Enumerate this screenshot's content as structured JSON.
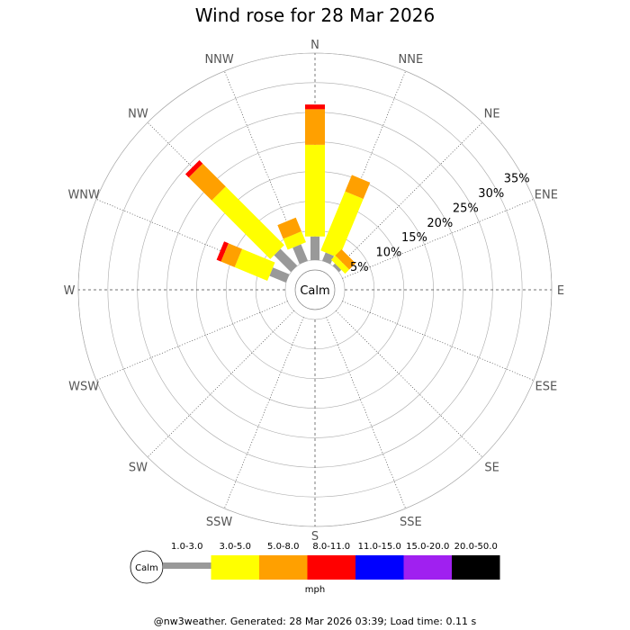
{
  "chart_data": {
    "type": "windrose",
    "title": "Wind rose for 28 Mar 2026",
    "directions": [
      "N",
      "NNE",
      "NE",
      "ENE",
      "E",
      "ESE",
      "SE",
      "SSE",
      "S",
      "SSW",
      "SW",
      "WSW",
      "W",
      "WNW",
      "NW",
      "NNW"
    ],
    "ring_labels": [
      "5%",
      "10%",
      "15%",
      "20%",
      "25%",
      "30%",
      "35%"
    ],
    "rmax": 35,
    "speed_bins": [
      {
        "label": "1.0-3.0",
        "color": "#999999"
      },
      {
        "label": "3.0-5.0",
        "color": "#ffff00"
      },
      {
        "label": "5.0-8.0",
        "color": "#ffa000"
      },
      {
        "label": "8.0-11.0",
        "color": "#ff0000"
      },
      {
        "label": "11.0-15.0",
        "color": "#0000ff"
      },
      {
        "label": "15.0-20.0",
        "color": "#a020f0"
      },
      {
        "label": "20.0-50.0",
        "color": "#000000"
      }
    ],
    "series": [
      {
        "direction": "N",
        "values": [
          4.0,
          15.5,
          6.0,
          0.8,
          0,
          0,
          0
        ]
      },
      {
        "direction": "NNE",
        "values": [
          1.5,
          10.8,
          3.0,
          0,
          0,
          0,
          0
        ]
      },
      {
        "direction": "NE",
        "values": [
          0.5,
          1.0,
          1.5,
          0,
          0,
          0,
          0
        ]
      },
      {
        "direction": "ENE",
        "values": [
          0,
          0,
          0,
          0,
          0,
          0,
          0
        ]
      },
      {
        "direction": "E",
        "values": [
          0,
          0,
          0,
          0,
          0,
          0,
          0
        ]
      },
      {
        "direction": "ESE",
        "values": [
          0,
          0,
          0,
          0,
          0,
          0,
          0
        ]
      },
      {
        "direction": "SE",
        "values": [
          0,
          0,
          0,
          0,
          0,
          0,
          0
        ]
      },
      {
        "direction": "SSE",
        "values": [
          0,
          0,
          0,
          0,
          0,
          0,
          0
        ]
      },
      {
        "direction": "S",
        "values": [
          0,
          0,
          0,
          0,
          0,
          0,
          0
        ]
      },
      {
        "direction": "SSW",
        "values": [
          0,
          0,
          0,
          0,
          0,
          0,
          0
        ]
      },
      {
        "direction": "SW",
        "values": [
          0,
          0,
          0,
          0,
          0,
          0,
          0
        ]
      },
      {
        "direction": "WSW",
        "values": [
          0,
          0,
          0,
          0,
          0,
          0,
          0
        ]
      },
      {
        "direction": "W",
        "values": [
          0,
          0,
          0,
          0,
          0,
          0,
          0
        ]
      },
      {
        "direction": "WNW",
        "values": [
          3.0,
          6.0,
          2.5,
          0.8,
          0,
          0,
          0
        ]
      },
      {
        "direction": "NW",
        "values": [
          4.0,
          14.0,
          5.5,
          0.8,
          0,
          0,
          0
        ]
      },
      {
        "direction": "NNW",
        "values": [
          3.0,
          2.0,
          2.5,
          0,
          0,
          0,
          0
        ]
      }
    ],
    "calm_label": "Calm",
    "legend_unit": "mph",
    "footer": "@nw3weather. Generated: 28 Mar 2026 03:39; Load time: 0.11 s"
  }
}
